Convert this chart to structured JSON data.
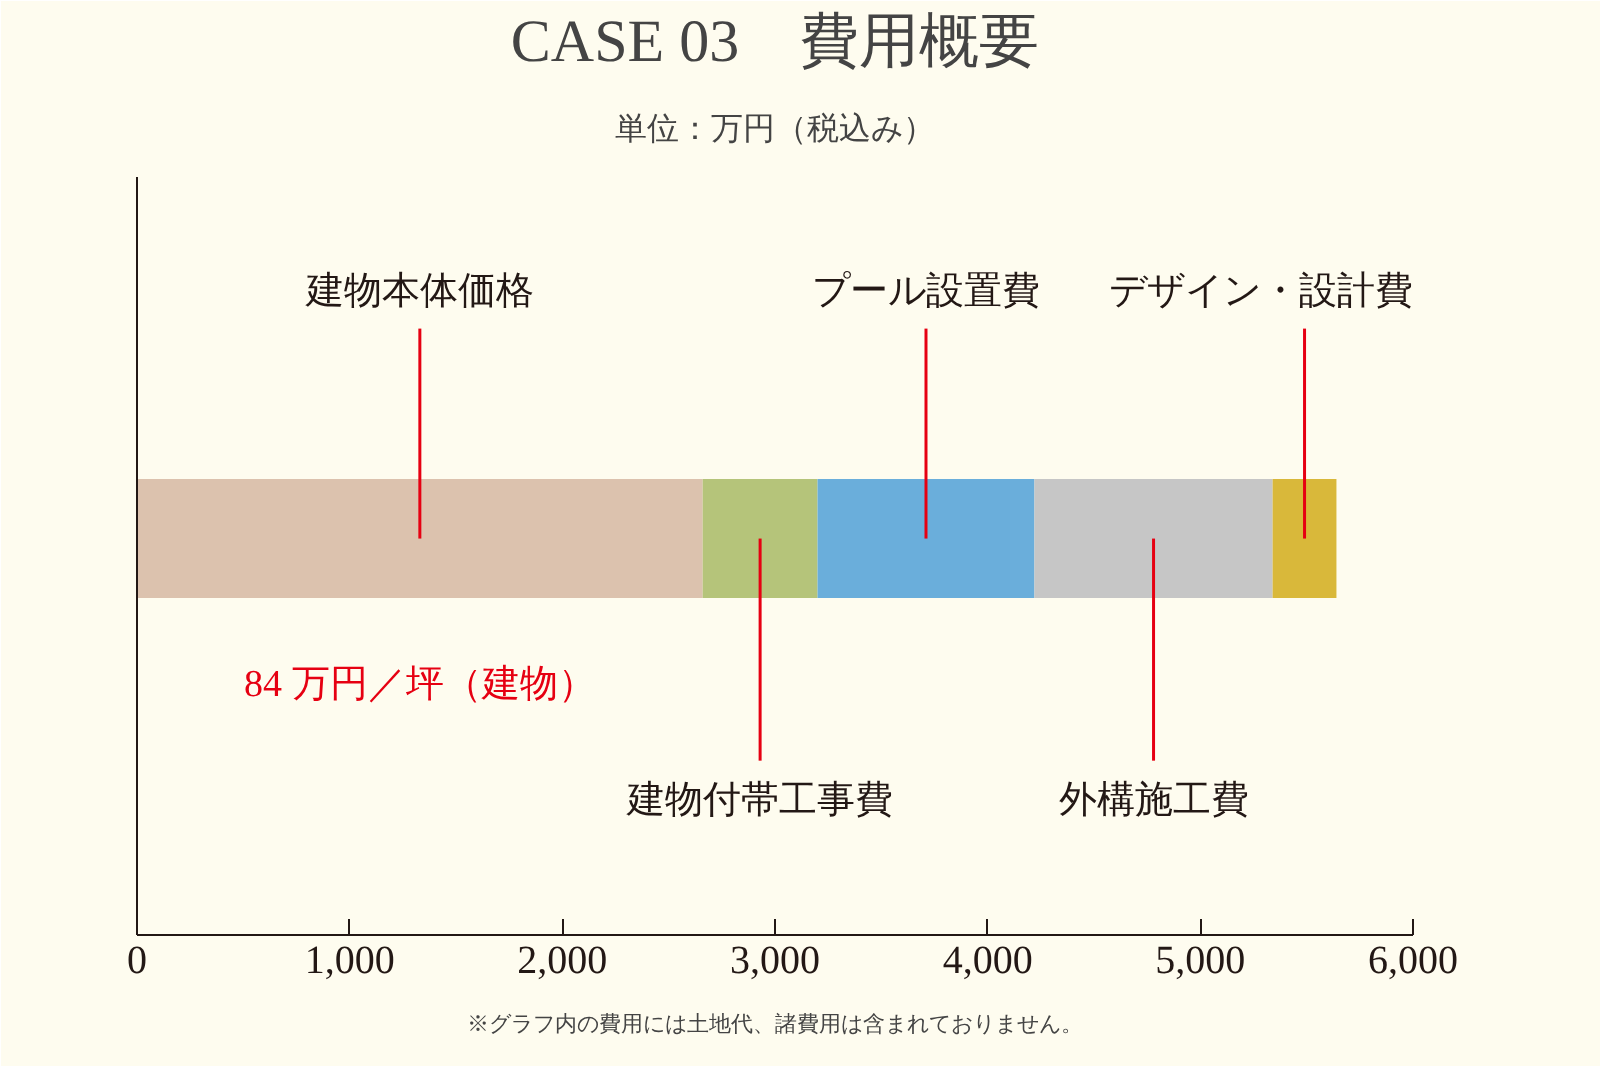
{
  "chart_data": {
    "type": "bar",
    "orientation": "horizontal",
    "stacked": true,
    "title": "CASE 03　費用概要",
    "subtitle": "単位：万円（税込み）",
    "categories": [
      null
    ],
    "series": [
      {
        "name": "建物本体価格",
        "color": "#dcc2ae",
        "values": [
          2660
        ]
      },
      {
        "name": "建物付帯工事費",
        "color": "#b5c47a",
        "values": [
          540
        ]
      },
      {
        "name": "プール設置費",
        "color": "#6aaedb",
        "values": [
          1020
        ]
      },
      {
        "name": "外構施工費",
        "color": "#c6c6c6",
        "values": [
          1120
        ]
      },
      {
        "name": "デザイン・設計費",
        "color": "#d9b83a",
        "values": [
          300
        ]
      }
    ],
    "xlim": [
      0,
      6000
    ],
    "xticks": [
      0,
      {
        "value": 1000,
        "label": "1,000"
      },
      {
        "value": 2000,
        "label": "2,000"
      },
      {
        "value": 3000,
        "label": "3,000"
      },
      {
        "value": 4000,
        "label": "4,000"
      },
      {
        "value": 5000,
        "label": "5,000"
      },
      {
        "value": 6000,
        "label": "6,000"
      }
    ],
    "tick_labels": "x",
    "grid": false,
    "annotations": [
      "84 万円／坪（建物）",
      "※グラフ内の費用には土地代、諸費用は含まれておりません。"
    ]
  }
}
